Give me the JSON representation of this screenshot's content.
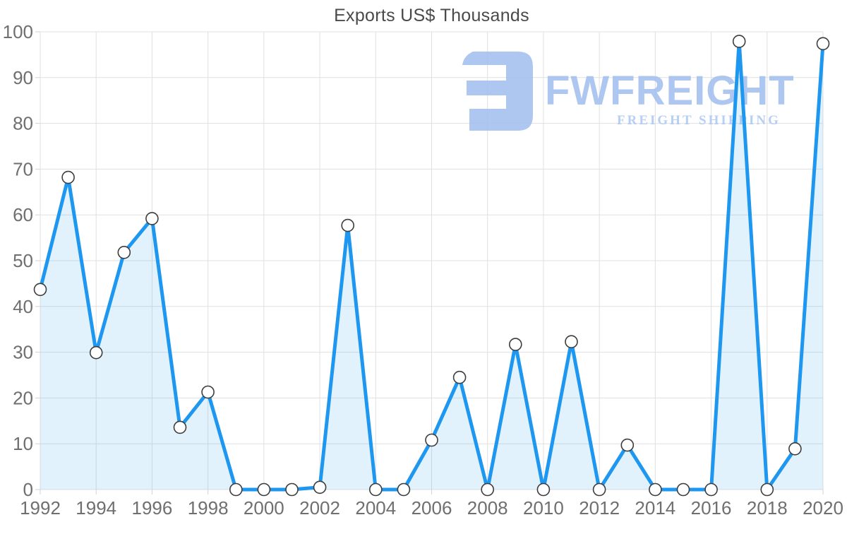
{
  "title": "Exports US$ Thousands",
  "watermark": {
    "brand": "FWFREIGHT",
    "tagline": "FREIGHT SHIPPING",
    "logo_color": "#a3c0ef",
    "brand_color": "#a3c0ef",
    "tagline_color": "#aec8f4"
  },
  "chart_data": {
    "type": "area",
    "title": "Exports US$ Thousands",
    "xlabel": "",
    "ylabel": "",
    "x": [
      1992,
      1993,
      1994,
      1995,
      1996,
      1997,
      1998,
      1999,
      2000,
      2001,
      2002,
      2003,
      2004,
      2005,
      2006,
      2007,
      2008,
      2009,
      2010,
      2011,
      2012,
      2013,
      2014,
      2015,
      2016,
      2017,
      2018,
      2019,
      2020
    ],
    "values": [
      43.7,
      68.2,
      29.9,
      51.8,
      59.2,
      13.6,
      21.3,
      0,
      0,
      0,
      0.5,
      57.7,
      0,
      0,
      10.8,
      24.5,
      0,
      31.7,
      0,
      32.3,
      0,
      9.7,
      0,
      0,
      0,
      97.9,
      0,
      8.9,
      97.4
    ],
    "ylim": [
      0,
      100
    ],
    "y_tick_step": 10,
    "x_tick_step": 2,
    "x_tick_labels": [
      "1992",
      "1994",
      "1996",
      "1998",
      "2000",
      "2002",
      "2004",
      "2006",
      "2008",
      "2010",
      "2012",
      "2014",
      "2016",
      "2018",
      "2020"
    ],
    "y_tick_labels": [
      "0",
      "10",
      "20",
      "30",
      "40",
      "50",
      "60",
      "70",
      "80",
      "90",
      "100"
    ],
    "grid": true,
    "legend": "none",
    "line_color": "#1e97f0",
    "fill_color": "rgba(30,151,240,0.13)",
    "marker_fill": "#ffffff",
    "marker_stroke": "#3d3d3d"
  }
}
